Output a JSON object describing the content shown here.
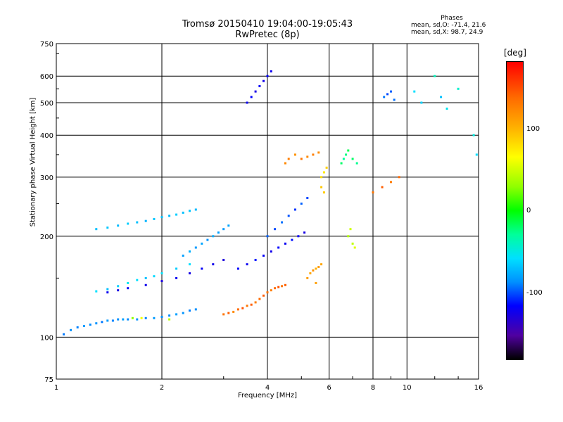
{
  "title_line1": "Tromsø 20150410 19:04:00-19:05:43",
  "title_line2": "RwPretec (8p)",
  "legend": {
    "heading": "Phases",
    "line_o": "mean, sd,O: -71.4, 21.6",
    "line_x": "mean, sd,X:  98.7, 24.9"
  },
  "chart_data": {
    "type": "scatter",
    "xlabel": "Frequency [MHz]",
    "ylabel": "Stationary phase Virtual Height [km]",
    "xscale": "log",
    "yscale": "log",
    "xlim": [
      1,
      16
    ],
    "ylim": [
      75,
      750
    ],
    "x_ticks": [
      "1",
      "2",
      "4",
      "6",
      "8",
      "10",
      "16"
    ],
    "y_ticks": [
      "75",
      "100",
      "200",
      "300",
      "400",
      "500",
      "600",
      "750"
    ],
    "grid": true,
    "colorbar": {
      "label": "[deg]",
      "ticks": [
        "100",
        "0",
        "-100"
      ]
    },
    "points": [
      [
        1.05,
        102,
        -90
      ],
      [
        1.1,
        105,
        -85
      ],
      [
        1.15,
        107,
        -88
      ],
      [
        1.2,
        108,
        -80
      ],
      [
        1.25,
        109,
        -86
      ],
      [
        1.3,
        110,
        -84
      ],
      [
        1.35,
        111,
        -90
      ],
      [
        1.4,
        112,
        -82
      ],
      [
        1.45,
        112,
        -88
      ],
      [
        1.5,
        113,
        -85
      ],
      [
        1.55,
        113,
        -80
      ],
      [
        1.6,
        113,
        -86
      ],
      [
        1.7,
        113,
        -84
      ],
      [
        1.8,
        114,
        -88
      ],
      [
        1.9,
        114,
        -82
      ],
      [
        2.0,
        115,
        -85
      ],
      [
        2.1,
        116,
        -86
      ],
      [
        2.2,
        117,
        -80
      ],
      [
        2.3,
        118,
        -84
      ],
      [
        2.4,
        120,
        -88
      ],
      [
        2.5,
        121,
        -85
      ],
      [
        1.65,
        114,
        30
      ],
      [
        1.75,
        114,
        60
      ],
      [
        2.1,
        113,
        45
      ],
      [
        3.0,
        117,
        130
      ],
      [
        3.1,
        118,
        140
      ],
      [
        3.2,
        119,
        120
      ],
      [
        3.3,
        121,
        135
      ],
      [
        3.4,
        122,
        145
      ],
      [
        3.5,
        124,
        130
      ],
      [
        3.6,
        125,
        140
      ],
      [
        3.7,
        127,
        125
      ],
      [
        3.8,
        130,
        135
      ],
      [
        3.9,
        133,
        140
      ],
      [
        4.0,
        136,
        130
      ],
      [
        4.1,
        138,
        125
      ],
      [
        4.2,
        140,
        135
      ],
      [
        4.3,
        141,
        145
      ],
      [
        4.4,
        142,
        130
      ],
      [
        4.5,
        143,
        140
      ],
      [
        5.2,
        150,
        110
      ],
      [
        5.3,
        155,
        105
      ],
      [
        5.4,
        158,
        115
      ],
      [
        5.5,
        160,
        100
      ],
      [
        5.6,
        162,
        110
      ],
      [
        5.7,
        165,
        105
      ],
      [
        5.5,
        145,
        108
      ],
      [
        1.3,
        137,
        -60
      ],
      [
        1.4,
        139,
        -70
      ],
      [
        1.5,
        142,
        -65
      ],
      [
        1.6,
        145,
        -55
      ],
      [
        1.7,
        148,
        -60
      ],
      [
        1.8,
        150,
        -70
      ],
      [
        1.9,
        152,
        -62
      ],
      [
        2.0,
        155,
        -58
      ],
      [
        2.2,
        160,
        -66
      ],
      [
        2.4,
        165,
        -60
      ],
      [
        1.4,
        136,
        -120
      ],
      [
        1.5,
        138,
        -125
      ],
      [
        1.6,
        140,
        -118
      ],
      [
        1.8,
        143,
        -122
      ],
      [
        2.0,
        147,
        -128
      ],
      [
        2.2,
        150,
        -120
      ],
      [
        2.4,
        155,
        -125
      ],
      [
        2.6,
        160,
        -118
      ],
      [
        2.8,
        165,
        -122
      ],
      [
        3.0,
        170,
        -128
      ],
      [
        2.3,
        175,
        -80
      ],
      [
        2.4,
        180,
        -75
      ],
      [
        2.5,
        185,
        -82
      ],
      [
        2.6,
        190,
        -78
      ],
      [
        2.7,
        195,
        -84
      ],
      [
        2.8,
        200,
        -76
      ],
      [
        2.9,
        205,
        -80
      ],
      [
        3.0,
        210,
        -82
      ],
      [
        3.1,
        215,
        -78
      ],
      [
        3.3,
        160,
        -115
      ],
      [
        3.5,
        165,
        -120
      ],
      [
        3.7,
        170,
        -110
      ],
      [
        3.9,
        175,
        -118
      ],
      [
        4.1,
        180,
        -122
      ],
      [
        4.3,
        185,
        -115
      ],
      [
        4.5,
        190,
        -120
      ],
      [
        4.7,
        195,
        -112
      ],
      [
        4.9,
        200,
        -118
      ],
      [
        5.1,
        205,
        -125
      ],
      [
        4.0,
        200,
        -95
      ],
      [
        4.2,
        210,
        -100
      ],
      [
        4.4,
        220,
        -92
      ],
      [
        4.6,
        230,
        -98
      ],
      [
        4.8,
        240,
        -104
      ],
      [
        5.0,
        250,
        -95
      ],
      [
        5.2,
        260,
        -100
      ],
      [
        1.3,
        210,
        -70
      ],
      [
        1.4,
        212,
        -68
      ],
      [
        1.5,
        215,
        -72
      ],
      [
        1.6,
        218,
        -66
      ],
      [
        1.7,
        220,
        -70
      ],
      [
        1.8,
        222,
        -74
      ],
      [
        1.9,
        225,
        -68
      ],
      [
        2.0,
        228,
        -70
      ],
      [
        2.1,
        230,
        -72
      ],
      [
        2.2,
        232,
        -66
      ],
      [
        2.3,
        235,
        -70
      ],
      [
        2.4,
        238,
        -68
      ],
      [
        2.5,
        240,
        -72
      ],
      [
        3.5,
        500,
        -120
      ],
      [
        3.6,
        520,
        -115
      ],
      [
        3.7,
        540,
        -125
      ],
      [
        3.8,
        560,
        -118
      ],
      [
        3.9,
        580,
        -122
      ],
      [
        4.0,
        600,
        -115
      ],
      [
        4.1,
        620,
        -120
      ],
      [
        4.5,
        330,
        120
      ],
      [
        4.6,
        340,
        125
      ],
      [
        4.8,
        350,
        115
      ],
      [
        5.0,
        340,
        130
      ],
      [
        5.2,
        345,
        120
      ],
      [
        5.4,
        350,
        125
      ],
      [
        5.6,
        355,
        118
      ],
      [
        5.7,
        300,
        80
      ],
      [
        5.8,
        310,
        75
      ],
      [
        5.9,
        320,
        85
      ],
      [
        5.7,
        280,
        90
      ],
      [
        5.8,
        270,
        88
      ],
      [
        6.5,
        330,
        -20
      ],
      [
        6.6,
        340,
        -30
      ],
      [
        6.7,
        350,
        -25
      ],
      [
        6.8,
        360,
        -15
      ],
      [
        7.0,
        340,
        -20
      ],
      [
        7.2,
        330,
        -28
      ],
      [
        6.8,
        200,
        40
      ],
      [
        6.9,
        210,
        50
      ],
      [
        7.0,
        190,
        45
      ],
      [
        7.1,
        185,
        55
      ],
      [
        8.0,
        270,
        130
      ],
      [
        8.5,
        280,
        140
      ],
      [
        9.0,
        290,
        125
      ],
      [
        9.5,
        300,
        135
      ],
      [
        8.6,
        520,
        -90
      ],
      [
        8.8,
        530,
        -100
      ],
      [
        9.0,
        540,
        -95
      ],
      [
        9.2,
        510,
        -92
      ],
      [
        10.5,
        540,
        -60
      ],
      [
        11.0,
        500,
        -65
      ],
      [
        12.5,
        520,
        -70
      ],
      [
        13.0,
        480,
        -55
      ],
      [
        12.0,
        600,
        -40
      ],
      [
        14.0,
        550,
        -45
      ],
      [
        15.5,
        400,
        -50
      ],
      [
        15.8,
        350,
        -60
      ]
    ]
  }
}
